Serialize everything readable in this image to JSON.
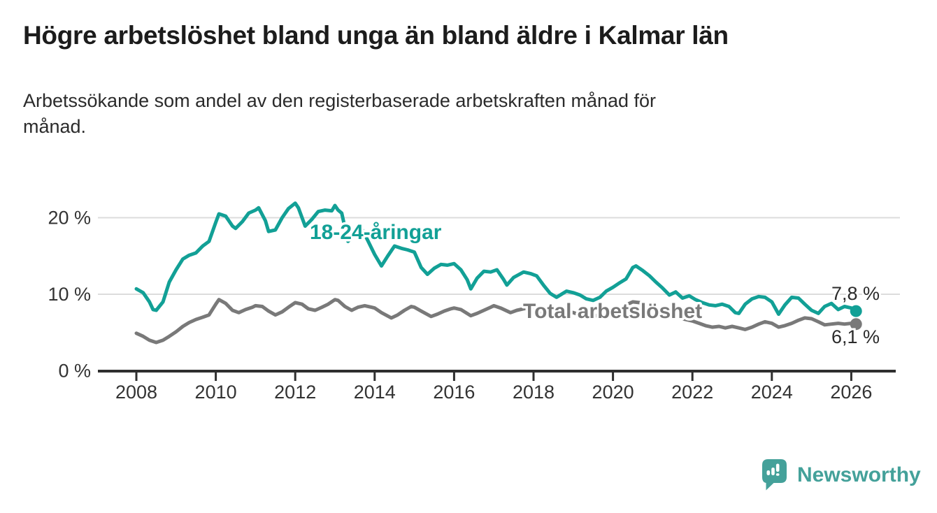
{
  "header": {
    "title": "Högre arbetslöshet bland unga än bland äldre i Kalmar län",
    "subtitle_lines": [
      "Arbetssökande som andel av den registerbaserade arbetskraften månad för",
      "månad."
    ]
  },
  "colors": {
    "young": "#12a096",
    "total": "#797979",
    "grid": "#dcdcdc",
    "axis": "#2f2f2f",
    "tick_text": "#333333",
    "value_text": "#2b2b2b",
    "logo": "#44a19a"
  },
  "chart_data": {
    "type": "line",
    "title": "Högre arbetslöshet bland unga än bland äldre i Kalmar län",
    "subtitle": "Arbetssökande som andel av den registerbaserade arbetskraften månad för månad.",
    "xlim": [
      2007.0,
      2027.1
    ],
    "ylim": [
      0,
      22.5
    ],
    "grid": "horizontal",
    "x_ticks": [
      {
        "value": 2008,
        "label": "2008"
      },
      {
        "value": 2010,
        "label": "2010"
      },
      {
        "value": 2012,
        "label": "2012"
      },
      {
        "value": 2014,
        "label": "2014"
      },
      {
        "value": 2016,
        "label": "2016"
      },
      {
        "value": 2018,
        "label": "2018"
      },
      {
        "value": 2020,
        "label": "2020"
      },
      {
        "value": 2022,
        "label": "2022"
      },
      {
        "value": 2024,
        "label": "2024"
      },
      {
        "value": 2026,
        "label": "2026"
      }
    ],
    "y_ticks": [
      {
        "value": 0,
        "label": "0 %"
      },
      {
        "value": 10,
        "label": "10 %"
      },
      {
        "value": 20,
        "label": "20 %"
      }
    ],
    "series": [
      {
        "name": "18-24-åringar",
        "color_key": "young",
        "end_label": "7,8 %",
        "end_value": 7.8,
        "x": [
          2008.0,
          2008.17,
          2008.33,
          2008.42,
          2008.5,
          2008.67,
          2008.83,
          2009.0,
          2009.17,
          2009.33,
          2009.5,
          2009.67,
          2009.83,
          2010.0,
          2010.08,
          2010.25,
          2010.42,
          2010.5,
          2010.67,
          2010.83,
          2011.0,
          2011.08,
          2011.25,
          2011.33,
          2011.5,
          2011.67,
          2011.83,
          2012.0,
          2012.08,
          2012.25,
          2012.42,
          2012.58,
          2012.75,
          2012.92,
          2013.0,
          2013.08,
          2013.17,
          2013.33,
          2013.5,
          2013.67,
          2013.83,
          2014.0,
          2014.17,
          2014.33,
          2014.5,
          2014.67,
          2014.83,
          2015.0,
          2015.17,
          2015.33,
          2015.5,
          2015.67,
          2015.83,
          2016.0,
          2016.17,
          2016.33,
          2016.42,
          2016.58,
          2016.75,
          2016.92,
          2017.08,
          2017.25,
          2017.33,
          2017.5,
          2017.75,
          2017.92,
          2018.08,
          2018.25,
          2018.42,
          2018.58,
          2018.83,
          2019.0,
          2019.17,
          2019.33,
          2019.5,
          2019.67,
          2019.83,
          2020.0,
          2020.17,
          2020.33,
          2020.5,
          2020.58,
          2020.75,
          2020.92,
          2021.08,
          2021.25,
          2021.42,
          2021.58,
          2021.75,
          2021.92,
          2022.08,
          2022.25,
          2022.42,
          2022.58,
          2022.75,
          2022.92,
          2023.08,
          2023.17,
          2023.33,
          2023.5,
          2023.67,
          2023.83,
          2024.0,
          2024.17,
          2024.33,
          2024.5,
          2024.67,
          2024.83,
          2025.0,
          2025.17,
          2025.33,
          2025.5,
          2025.67,
          2025.83,
          2026.0,
          2026.12
        ],
        "values": [
          10.7,
          10.2,
          9.0,
          8.0,
          7.9,
          9.0,
          11.6,
          13.2,
          14.6,
          15.1,
          15.4,
          16.3,
          16.9,
          19.4,
          20.5,
          20.2,
          18.9,
          18.6,
          19.5,
          20.6,
          21.0,
          21.3,
          19.6,
          18.2,
          18.4,
          20.0,
          21.2,
          21.9,
          21.3,
          18.9,
          19.8,
          20.8,
          21.0,
          20.9,
          21.6,
          21.0,
          20.6,
          16.9,
          17.8,
          18.6,
          17.0,
          15.2,
          13.7,
          15.0,
          16.3,
          16.0,
          15.8,
          15.5,
          13.5,
          12.6,
          13.4,
          13.9,
          13.8,
          14.0,
          13.2,
          11.9,
          10.7,
          12.1,
          13.0,
          12.9,
          13.2,
          11.9,
          11.2,
          12.2,
          12.9,
          12.7,
          12.4,
          11.2,
          10.1,
          9.6,
          10.4,
          10.2,
          9.9,
          9.4,
          9.2,
          9.6,
          10.4,
          10.9,
          11.5,
          12.0,
          13.5,
          13.7,
          13.1,
          12.4,
          11.6,
          10.8,
          9.9,
          10.3,
          9.5,
          9.8,
          9.3,
          8.9,
          8.6,
          8.5,
          8.7,
          8.4,
          7.6,
          7.5,
          8.7,
          9.4,
          9.7,
          9.6,
          9.0,
          7.4,
          8.6,
          9.6,
          9.5,
          8.7,
          7.9,
          7.5,
          8.4,
          8.8,
          8.0,
          8.4,
          8.2,
          7.8
        ]
      },
      {
        "name": "Total arbetslöshet",
        "color_key": "total",
        "end_label": "6,1 %",
        "end_value": 6.1,
        "x": [
          2008.0,
          2008.17,
          2008.33,
          2008.5,
          2008.67,
          2008.83,
          2009.0,
          2009.17,
          2009.33,
          2009.5,
          2009.67,
          2009.83,
          2010.0,
          2010.08,
          2010.25,
          2010.42,
          2010.58,
          2010.75,
          2010.92,
          2011.0,
          2011.17,
          2011.33,
          2011.5,
          2011.67,
          2011.83,
          2012.0,
          2012.17,
          2012.33,
          2012.5,
          2012.67,
          2012.83,
          2013.0,
          2013.08,
          2013.25,
          2013.42,
          2013.58,
          2013.75,
          2013.92,
          2014.0,
          2014.17,
          2014.42,
          2014.58,
          2014.75,
          2014.92,
          2015.0,
          2015.17,
          2015.42,
          2015.58,
          2015.75,
          2015.92,
          2016.0,
          2016.17,
          2016.42,
          2016.58,
          2016.75,
          2016.92,
          2017.0,
          2017.17,
          2017.42,
          2017.58,
          2017.75,
          2017.92,
          2018.0,
          2018.17,
          2018.42,
          2018.58,
          2018.75,
          2018.92,
          2019.0,
          2019.17,
          2019.42,
          2019.58,
          2019.75,
          2019.92,
          2020.0,
          2020.17,
          2020.33,
          2020.5,
          2020.67,
          2020.83,
          2021.0,
          2021.17,
          2021.33,
          2021.5,
          2021.67,
          2021.83,
          2022.0,
          2022.17,
          2022.33,
          2022.5,
          2022.67,
          2022.83,
          2023.0,
          2023.17,
          2023.33,
          2023.5,
          2023.67,
          2023.83,
          2024.0,
          2024.17,
          2024.33,
          2024.5,
          2024.67,
          2024.83,
          2025.0,
          2025.17,
          2025.33,
          2025.5,
          2025.67,
          2025.83,
          2026.0,
          2026.12
        ],
        "values": [
          4.9,
          4.5,
          4.0,
          3.7,
          4.0,
          4.5,
          5.1,
          5.8,
          6.3,
          6.7,
          7.0,
          7.3,
          8.7,
          9.3,
          8.8,
          7.9,
          7.6,
          8.0,
          8.3,
          8.5,
          8.4,
          7.8,
          7.3,
          7.7,
          8.3,
          8.9,
          8.7,
          8.1,
          7.9,
          8.3,
          8.7,
          9.3,
          9.2,
          8.4,
          7.9,
          8.3,
          8.5,
          8.3,
          8.2,
          7.6,
          6.9,
          7.3,
          7.9,
          8.4,
          8.3,
          7.8,
          7.1,
          7.4,
          7.8,
          8.1,
          8.2,
          8.0,
          7.2,
          7.5,
          7.9,
          8.3,
          8.5,
          8.2,
          7.6,
          7.9,
          8.1,
          8.2,
          8.1,
          7.7,
          7.1,
          7.3,
          7.6,
          7.7,
          7.6,
          7.3,
          7.0,
          7.2,
          7.4,
          7.5,
          7.6,
          8.0,
          8.6,
          9.0,
          8.9,
          8.7,
          8.4,
          8.0,
          7.6,
          7.2,
          6.9,
          6.7,
          6.5,
          6.2,
          5.9,
          5.7,
          5.8,
          5.6,
          5.8,
          5.6,
          5.4,
          5.7,
          6.1,
          6.4,
          6.2,
          5.7,
          5.9,
          6.2,
          6.6,
          6.9,
          6.8,
          6.4,
          6.0,
          6.1,
          6.2,
          6.1,
          6.2,
          6.1
        ]
      }
    ],
    "legend_position": "inline-labels"
  },
  "footer": {
    "brand": "Newsworthy"
  }
}
